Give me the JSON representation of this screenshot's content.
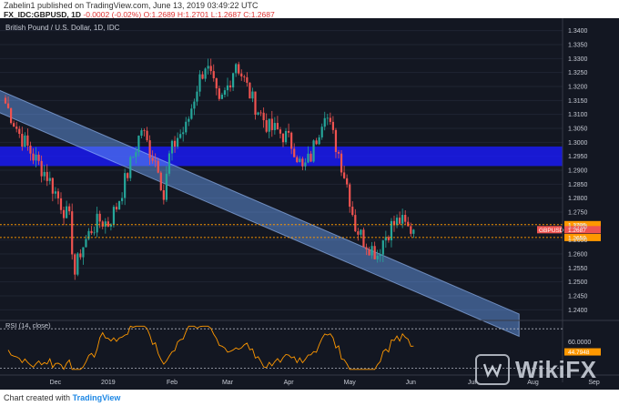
{
  "header": {
    "author": "Zabelin1",
    "published_text": "published on TradingView.com, June 13, 2019 03:49:22 UTC",
    "symbol": "FX_IDC:GBPUSD, 1D",
    "change": "-0.0002 (-0.02%)",
    "ohlc": "O:1.2689 H:1.2701 L:1.2687 C:1.2687"
  },
  "footer": {
    "prefix": "Chart created with",
    "brand": "TradingView"
  },
  "watermark": {
    "text": "WikiFX"
  },
  "chart_data": {
    "type": "candlestick",
    "title": "British Pound / U.S. Dollar, 1D, IDC",
    "ylim": [
      1.2375,
      1.3425
    ],
    "price_ticks": [
      "1.3400",
      "1.3350",
      "1.3300",
      "1.3250",
      "1.3200",
      "1.3150",
      "1.3100",
      "1.3050",
      "1.3000",
      "1.2950",
      "1.2900",
      "1.2850",
      "1.2800",
      "1.2750",
      "1.2700",
      "1.2650",
      "1.2600",
      "1.2550",
      "1.2500",
      "1.2450",
      "1.2400"
    ],
    "x_labels": [
      {
        "label": "Dec",
        "i": 18
      },
      {
        "label": "2019",
        "i": 37
      },
      {
        "label": "Feb",
        "i": 60
      },
      {
        "label": "Mar",
        "i": 80
      },
      {
        "label": "Apr",
        "i": 102
      },
      {
        "label": "May",
        "i": 124
      },
      {
        "label": "Jun",
        "i": 146
      },
      {
        "label": "Jul",
        "i": 168
      },
      {
        "label": "Aug",
        "i": 190
      },
      {
        "label": "Sep",
        "i": 212
      }
    ],
    "anchors": [
      [
        0,
        1.314
      ],
      [
        5,
        1.303
      ],
      [
        10,
        1.295
      ],
      [
        15,
        1.288
      ],
      [
        20,
        1.278
      ],
      [
        23,
        1.272
      ],
      [
        25,
        1.253
      ],
      [
        27,
        1.261
      ],
      [
        31,
        1.269
      ],
      [
        34,
        1.272
      ],
      [
        37,
        1.271
      ],
      [
        40,
        1.277
      ],
      [
        43,
        1.286
      ],
      [
        46,
        1.295
      ],
      [
        49,
        1.305
      ],
      [
        52,
        1.297
      ],
      [
        55,
        1.292
      ],
      [
        57,
        1.28
      ],
      [
        59,
        1.295
      ],
      [
        62,
        1.302
      ],
      [
        65,
        1.305
      ],
      [
        69,
        1.32
      ],
      [
        72,
        1.328
      ],
      [
        74,
        1.323
      ],
      [
        77,
        1.313
      ],
      [
        80,
        1.32
      ],
      [
        83,
        1.329
      ],
      [
        86,
        1.322
      ],
      [
        89,
        1.315
      ],
      [
        92,
        1.31
      ],
      [
        95,
        1.305
      ],
      [
        98,
        1.304
      ],
      [
        101,
        1.302
      ],
      [
        104,
        1.298
      ],
      [
        107,
        1.29
      ],
      [
        110,
        1.295
      ],
      [
        113,
        1.305
      ],
      [
        115,
        1.312
      ],
      [
        117,
        1.305
      ],
      [
        120,
        1.296
      ],
      [
        123,
        1.285
      ],
      [
        126,
        1.27
      ],
      [
        129,
        1.265
      ],
      [
        132,
        1.262
      ],
      [
        134,
        1.26
      ],
      [
        136,
        1.265
      ],
      [
        139,
        1.27
      ],
      [
        142,
        1.272
      ],
      [
        145,
        1.269
      ],
      [
        147,
        1.2687
      ]
    ],
    "last_index": 147,
    "levels": [
      {
        "name": "resistance",
        "value": 1.2705,
        "color": "#ff9800",
        "label": "1.2705"
      },
      {
        "name": "support",
        "value": 1.2659,
        "color": "#ff9800",
        "label": "1.2659"
      }
    ],
    "last_price": {
      "value": 1.2687,
      "label": "GBPUSD",
      "text": "1.2687",
      "color": "#ef5350"
    },
    "zone": {
      "from": 1.2915,
      "to": 1.2985,
      "color": "#1a1aff"
    },
    "channel": {
      "upper_start": [
        -3,
        1.319
      ],
      "upper_end": [
        185,
        1.2385
      ],
      "width": 0.008,
      "color": "#6fa8ff"
    },
    "colors": {
      "up": "#26a69a",
      "down": "#ef5350"
    },
    "rsi": {
      "title": "RSI (14, close)",
      "ylim": [
        15,
        90
      ],
      "upper": 80,
      "lower": 20,
      "tick": "60.0000",
      "last": "44.7948",
      "color": "#ff9800"
    }
  }
}
